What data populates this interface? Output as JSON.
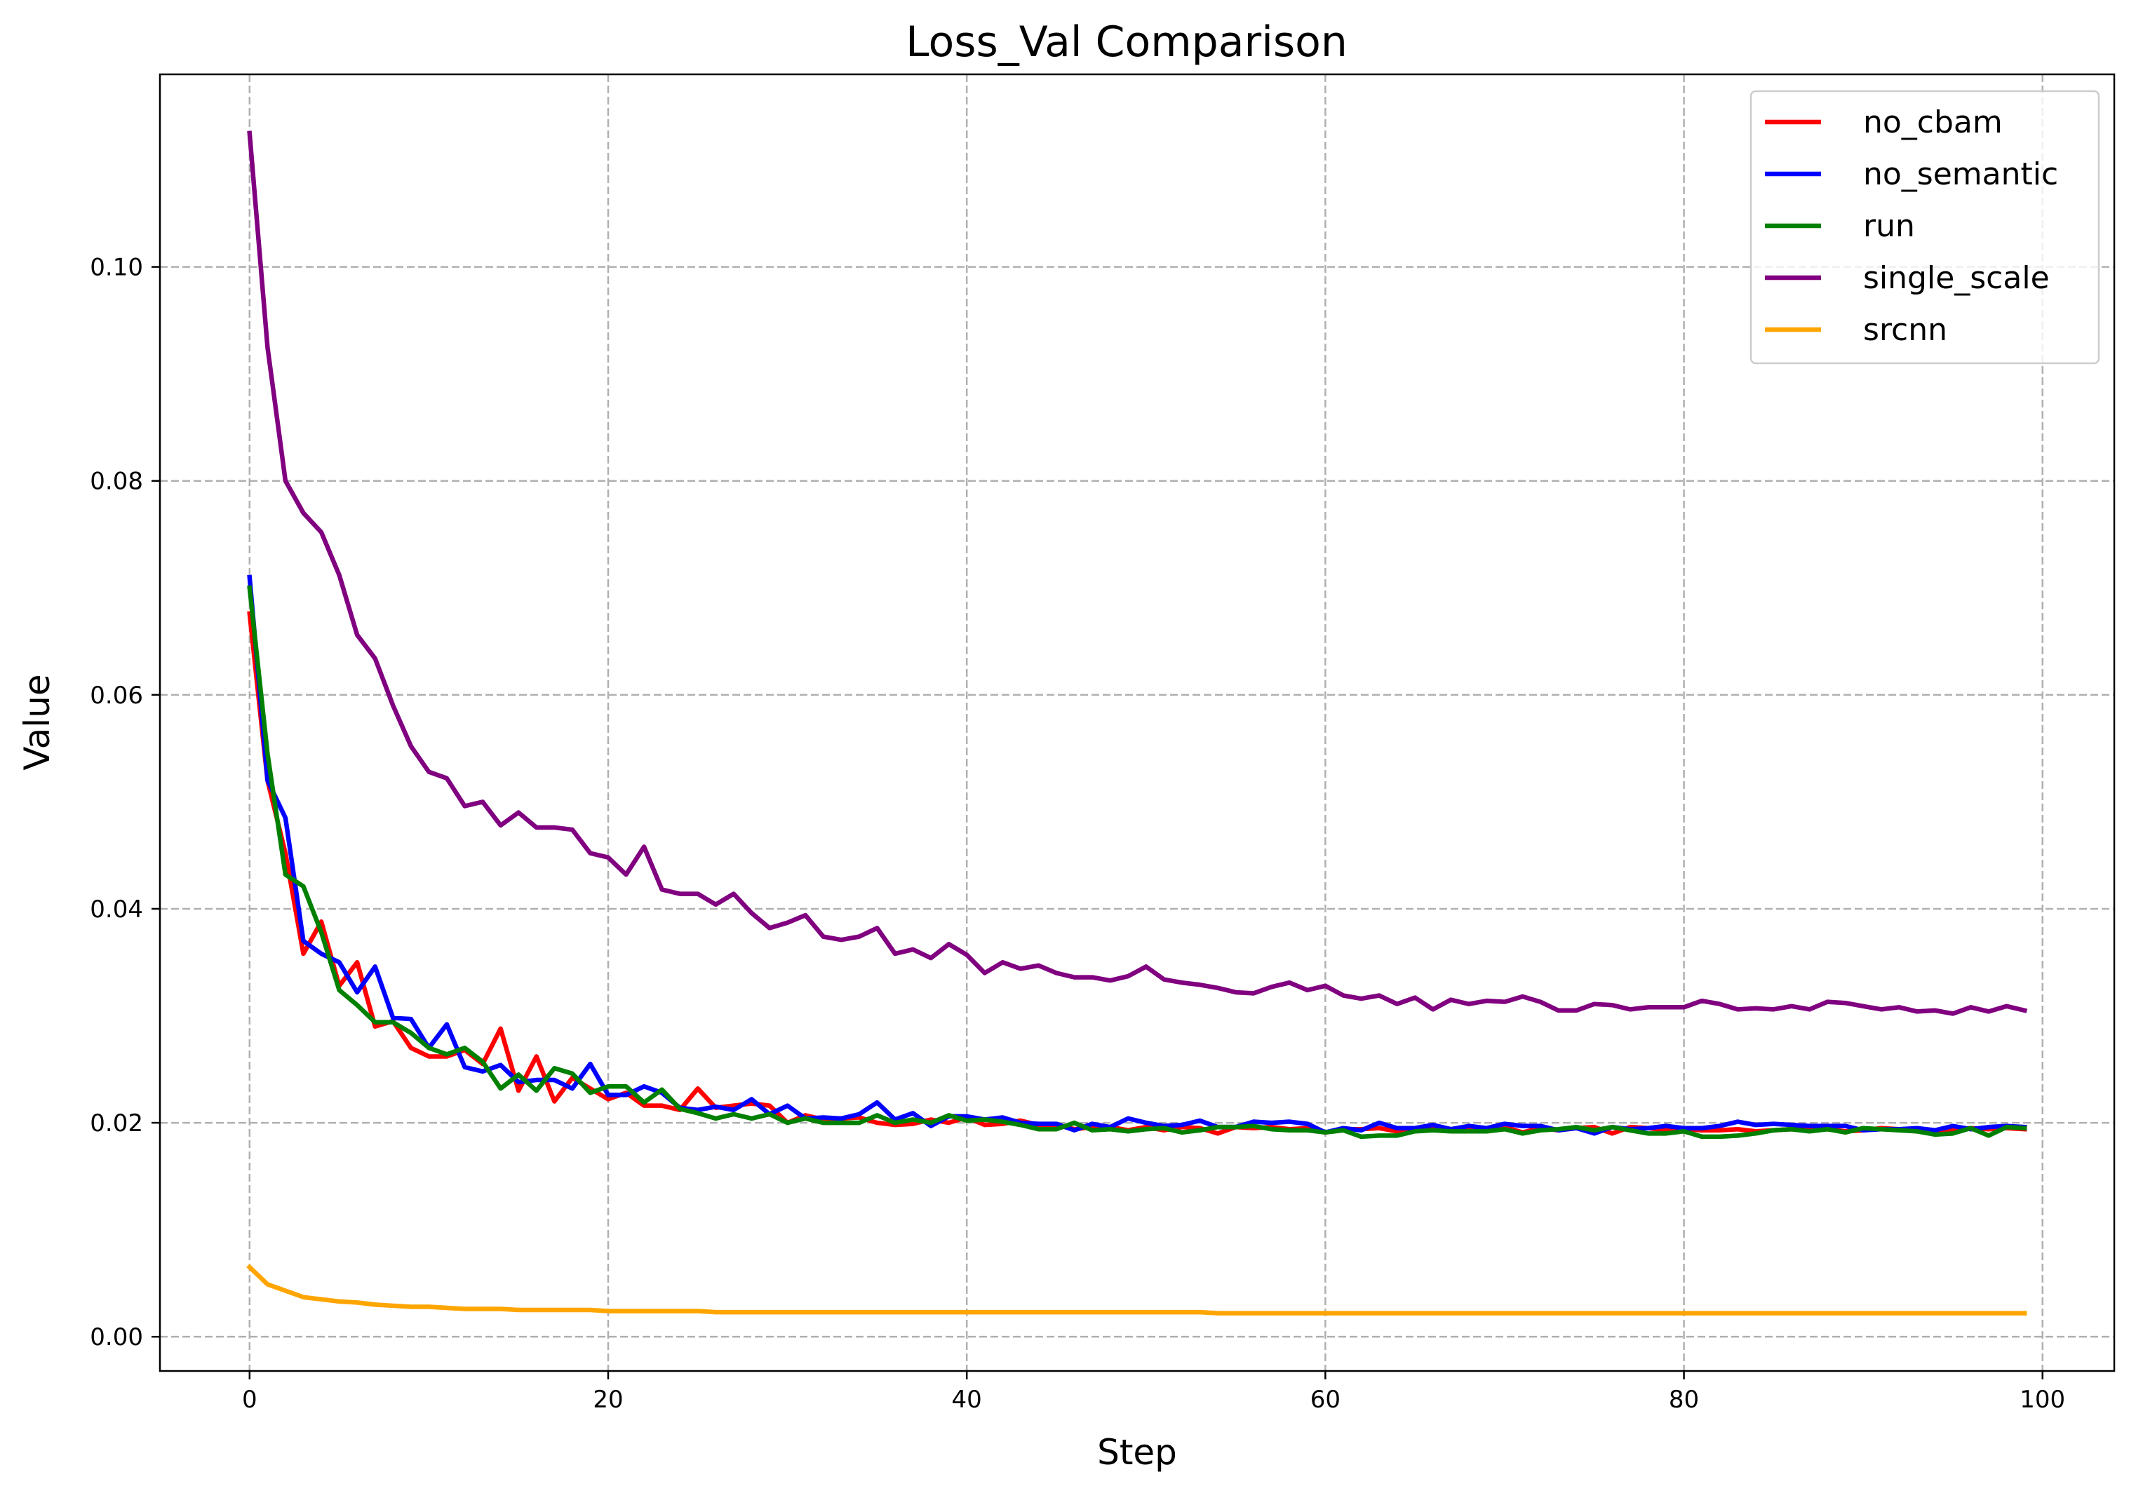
{
  "chart_data": {
    "type": "line",
    "title": "Loss_Val Comparison",
    "xlabel": "Step",
    "ylabel": "Value",
    "xlim": [
      -5,
      104
    ],
    "ylim": [
      -0.0032,
      0.118
    ],
    "xticks": [
      0,
      20,
      40,
      60,
      80,
      100
    ],
    "yticks": [
      0.0,
      0.02,
      0.04,
      0.06,
      0.08,
      0.1
    ],
    "xtick_labels": [
      "0",
      "20",
      "40",
      "60",
      "80",
      "100"
    ],
    "ytick_labels": [
      "0.00",
      "0.02",
      "0.04",
      "0.06",
      "0.08",
      "0.10"
    ],
    "grid": true,
    "legend_position": "top-right",
    "series": [
      {
        "name": "no_cbam",
        "color": "#ff0000",
        "values": [
          0.0676,
          0.052,
          0.0452,
          0.0358,
          0.0388,
          0.0328,
          0.035,
          0.029,
          0.0295,
          0.027,
          0.0262,
          0.0262,
          0.0268,
          0.0255,
          0.0288,
          0.023,
          0.0262,
          0.022,
          0.0242,
          0.0232,
          0.0222,
          0.0228,
          0.0216,
          0.0216,
          0.0212,
          0.0232,
          0.0214,
          0.0216,
          0.0218,
          0.0216,
          0.02,
          0.0207,
          0.0203,
          0.0204,
          0.0205,
          0.02,
          0.0198,
          0.0199,
          0.0203,
          0.02,
          0.0205,
          0.0198,
          0.0199,
          0.0202,
          0.0198,
          0.0198,
          0.0194,
          0.0196,
          0.0196,
          0.0193,
          0.0196,
          0.0193,
          0.0196,
          0.0195,
          0.019,
          0.0196,
          0.0195,
          0.0196,
          0.0194,
          0.0195,
          0.0191,
          0.0194,
          0.0194,
          0.0195,
          0.0192,
          0.0193,
          0.0195,
          0.0194,
          0.0195,
          0.0193,
          0.0196,
          0.0191,
          0.0195,
          0.0193,
          0.0195,
          0.0196,
          0.019,
          0.0196,
          0.0195,
          0.0193,
          0.0194,
          0.0193,
          0.0193,
          0.0194,
          0.0192,
          0.0193,
          0.0194,
          0.0193,
          0.0194,
          0.0192,
          0.0193,
          0.0195,
          0.0194,
          0.0192,
          0.0193,
          0.0193,
          0.0195,
          0.0194,
          0.0195,
          0.0194
        ]
      },
      {
        "name": "no_semantic",
        "color": "#0000ff",
        "values": [
          0.071,
          0.052,
          0.0485,
          0.037,
          0.0358,
          0.035,
          0.0322,
          0.0346,
          0.0298,
          0.0297,
          0.027,
          0.0292,
          0.0252,
          0.0248,
          0.0254,
          0.0238,
          0.024,
          0.024,
          0.0232,
          0.0255,
          0.0226,
          0.0226,
          0.0234,
          0.0228,
          0.0214,
          0.0212,
          0.0215,
          0.0212,
          0.0222,
          0.0208,
          0.0216,
          0.0204,
          0.0205,
          0.0204,
          0.0208,
          0.0219,
          0.0203,
          0.0209,
          0.0197,
          0.0206,
          0.0206,
          0.0203,
          0.0205,
          0.02,
          0.0199,
          0.0199,
          0.0193,
          0.0199,
          0.0196,
          0.0204,
          0.02,
          0.0197,
          0.0198,
          0.0202,
          0.0196,
          0.0196,
          0.0201,
          0.02,
          0.0201,
          0.0199,
          0.0191,
          0.0195,
          0.0193,
          0.02,
          0.0195,
          0.0195,
          0.0198,
          0.0194,
          0.0197,
          0.0195,
          0.0199,
          0.0197,
          0.0197,
          0.0193,
          0.0195,
          0.019,
          0.0196,
          0.0194,
          0.0195,
          0.0197,
          0.0195,
          0.0195,
          0.0197,
          0.0201,
          0.0198,
          0.0199,
          0.0198,
          0.0197,
          0.0197,
          0.0197,
          0.0193,
          0.0194,
          0.0194,
          0.0195,
          0.0193,
          0.0197,
          0.0194,
          0.0196,
          0.0197,
          0.0196
        ]
      },
      {
        "name": "run",
        "color": "#008000",
        "values": [
          0.07,
          0.0545,
          0.0432,
          0.0421,
          0.0378,
          0.0324,
          0.031,
          0.0294,
          0.0294,
          0.0284,
          0.027,
          0.0264,
          0.027,
          0.0257,
          0.0232,
          0.0245,
          0.023,
          0.0251,
          0.0246,
          0.0228,
          0.0234,
          0.0234,
          0.0219,
          0.0231,
          0.0213,
          0.0209,
          0.0204,
          0.0208,
          0.0204,
          0.0208,
          0.02,
          0.0204,
          0.02,
          0.02,
          0.02,
          0.0207,
          0.02,
          0.0203,
          0.02,
          0.0207,
          0.0202,
          0.0203,
          0.0201,
          0.0198,
          0.0194,
          0.0194,
          0.02,
          0.0193,
          0.0194,
          0.0192,
          0.0194,
          0.0195,
          0.0191,
          0.0193,
          0.0196,
          0.0196,
          0.0197,
          0.0194,
          0.0193,
          0.0193,
          0.0191,
          0.0193,
          0.0187,
          0.0188,
          0.0188,
          0.0192,
          0.0193,
          0.0192,
          0.0192,
          0.0192,
          0.0194,
          0.019,
          0.0193,
          0.0194,
          0.0196,
          0.0193,
          0.0196,
          0.0193,
          0.019,
          0.019,
          0.0192,
          0.0187,
          0.0187,
          0.0188,
          0.019,
          0.0193,
          0.0194,
          0.0192,
          0.0194,
          0.0191,
          0.0195,
          0.0194,
          0.0193,
          0.0192,
          0.0189,
          0.019,
          0.0195,
          0.0188,
          0.0196,
          0.0195
        ]
      },
      {
        "name": "single_scale",
        "color": "#800080",
        "values": [
          0.1125,
          0.0925,
          0.08,
          0.077,
          0.0752,
          0.0712,
          0.0656,
          0.0634,
          0.059,
          0.0552,
          0.0528,
          0.0522,
          0.0496,
          0.05,
          0.0478,
          0.049,
          0.0476,
          0.0476,
          0.0474,
          0.0452,
          0.0448,
          0.0432,
          0.0458,
          0.0418,
          0.0414,
          0.0414,
          0.0404,
          0.0414,
          0.0396,
          0.0382,
          0.0387,
          0.0394,
          0.0374,
          0.0371,
          0.0374,
          0.0382,
          0.0358,
          0.0362,
          0.0354,
          0.0367,
          0.0357,
          0.034,
          0.035,
          0.0344,
          0.0347,
          0.034,
          0.0336,
          0.0336,
          0.0333,
          0.0337,
          0.0346,
          0.0334,
          0.0331,
          0.0329,
          0.0326,
          0.0322,
          0.0321,
          0.0327,
          0.0331,
          0.0324,
          0.0328,
          0.0319,
          0.0316,
          0.0319,
          0.0311,
          0.0317,
          0.0306,
          0.0315,
          0.0311,
          0.0314,
          0.0313,
          0.0318,
          0.0313,
          0.0305,
          0.0305,
          0.0311,
          0.031,
          0.0306,
          0.0308,
          0.0308,
          0.0308,
          0.0314,
          0.0311,
          0.0306,
          0.0307,
          0.0306,
          0.0309,
          0.0306,
          0.0313,
          0.0312,
          0.0309,
          0.0306,
          0.0308,
          0.0304,
          0.0305,
          0.0302,
          0.0308,
          0.0304,
          0.0309,
          0.0305
        ]
      },
      {
        "name": "srcnn",
        "color": "#ffa500",
        "values": [
          0.0065,
          0.0049,
          0.0043,
          0.0037,
          0.0035,
          0.0033,
          0.0032,
          0.003,
          0.0029,
          0.0028,
          0.0028,
          0.0027,
          0.0026,
          0.0026,
          0.0026,
          0.0025,
          0.0025,
          0.0025,
          0.0025,
          0.0025,
          0.0024,
          0.0024,
          0.0024,
          0.0024,
          0.0024,
          0.0024,
          0.0023,
          0.0023,
          0.0023,
          0.0023,
          0.0023,
          0.0023,
          0.0023,
          0.0023,
          0.0023,
          0.0023,
          0.0023,
          0.0023,
          0.0023,
          0.0023,
          0.0023,
          0.0023,
          0.0023,
          0.0023,
          0.0023,
          0.0023,
          0.0023,
          0.0023,
          0.0023,
          0.0023,
          0.0023,
          0.0023,
          0.0023,
          0.0023,
          0.0022,
          0.0022,
          0.0022,
          0.0022,
          0.0022,
          0.0022,
          0.0022,
          0.0022,
          0.0022,
          0.0022,
          0.0022,
          0.0022,
          0.0022,
          0.0022,
          0.0022,
          0.0022,
          0.0022,
          0.0022,
          0.0022,
          0.0022,
          0.0022,
          0.0022,
          0.0022,
          0.0022,
          0.0022,
          0.0022,
          0.0022,
          0.0022,
          0.0022,
          0.0022,
          0.0022,
          0.0022,
          0.0022,
          0.0022,
          0.0022,
          0.0022,
          0.0022,
          0.0022,
          0.0022,
          0.0022,
          0.0022,
          0.0022,
          0.0022,
          0.0022,
          0.0022,
          0.0022
        ]
      }
    ]
  }
}
